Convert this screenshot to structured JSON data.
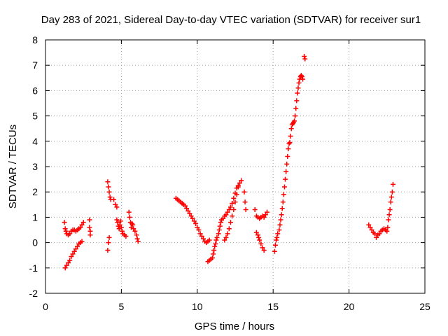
{
  "chart_data": {
    "type": "scatter",
    "title": "Day 283 of 2021, Sidereal Day-to-day VTEC variation (SDTVAR) for receiver sur1",
    "xlabel": "GPS time / hours",
    "ylabel": "SDTVAR / TECUs",
    "xlim": [
      0,
      25
    ],
    "ylim": [
      -2,
      8
    ],
    "xticks": [
      0,
      5,
      10,
      15,
      20,
      25
    ],
    "yticks": [
      -2,
      -1,
      0,
      1,
      2,
      3,
      4,
      5,
      6,
      7,
      8
    ],
    "xtick_labels": [
      "0",
      "5",
      "10",
      "15",
      "20",
      "25"
    ],
    "ytick_labels": [
      "-2",
      "-1",
      "0",
      "1",
      "2",
      "3",
      "4",
      "5",
      "6",
      "7",
      "8"
    ],
    "grid": true,
    "grid_style": "dotted",
    "marker": "+",
    "series": [
      {
        "name": "SDTVAR",
        "color": "#ff0000",
        "points": [
          [
            1.25,
            0.8
          ],
          [
            1.3,
            0.55
          ],
          [
            1.35,
            0.45
          ],
          [
            1.4,
            0.35
          ],
          [
            1.5,
            0.3
          ],
          [
            1.6,
            0.35
          ],
          [
            1.7,
            0.45
          ],
          [
            1.8,
            0.5
          ],
          [
            1.9,
            0.5
          ],
          [
            2.0,
            0.45
          ],
          [
            2.1,
            0.5
          ],
          [
            2.2,
            0.55
          ],
          [
            2.3,
            0.6
          ],
          [
            2.4,
            0.7
          ],
          [
            2.5,
            0.8
          ],
          [
            1.3,
            -1.0
          ],
          [
            1.4,
            -0.9
          ],
          [
            1.5,
            -0.8
          ],
          [
            1.6,
            -0.7
          ],
          [
            1.7,
            -0.55
          ],
          [
            1.8,
            -0.45
          ],
          [
            1.9,
            -0.35
          ],
          [
            2.0,
            -0.25
          ],
          [
            2.1,
            -0.15
          ],
          [
            2.2,
            -0.05
          ],
          [
            2.3,
            0.0
          ],
          [
            2.4,
            0.05
          ],
          [
            2.9,
            0.9
          ],
          [
            2.9,
            0.6
          ],
          [
            2.95,
            0.45
          ],
          [
            2.95,
            0.3
          ],
          [
            4.1,
            -0.3
          ],
          [
            4.15,
            0.0
          ],
          [
            4.2,
            0.2
          ],
          [
            4.1,
            2.4
          ],
          [
            4.15,
            2.2
          ],
          [
            4.2,
            2.0
          ],
          [
            4.25,
            1.8
          ],
          [
            4.3,
            1.7
          ],
          [
            4.5,
            1.7
          ],
          [
            4.6,
            1.5
          ],
          [
            4.7,
            1.4
          ],
          [
            4.7,
            0.9
          ],
          [
            4.75,
            0.8
          ],
          [
            4.8,
            0.65
          ],
          [
            4.85,
            0.55
          ],
          [
            4.9,
            0.7
          ],
          [
            4.95,
            0.85
          ],
          [
            5.0,
            0.6
          ],
          [
            5.05,
            0.45
          ],
          [
            5.1,
            0.35
          ],
          [
            5.2,
            0.3
          ],
          [
            5.3,
            0.25
          ],
          [
            5.5,
            1.2
          ],
          [
            5.55,
            1.0
          ],
          [
            5.6,
            0.8
          ],
          [
            5.65,
            0.6
          ],
          [
            5.7,
            0.75
          ],
          [
            5.75,
            0.7
          ],
          [
            5.8,
            0.55
          ],
          [
            5.9,
            0.45
          ],
          [
            6.0,
            0.3
          ],
          [
            6.05,
            0.15
          ],
          [
            6.1,
            0.05
          ],
          [
            8.6,
            1.75
          ],
          [
            8.7,
            1.7
          ],
          [
            8.8,
            1.65
          ],
          [
            8.9,
            1.6
          ],
          [
            9.0,
            1.55
          ],
          [
            9.1,
            1.5
          ],
          [
            9.2,
            1.45
          ],
          [
            9.3,
            1.35
          ],
          [
            9.4,
            1.25
          ],
          [
            9.5,
            1.15
          ],
          [
            9.6,
            1.05
          ],
          [
            9.7,
            0.95
          ],
          [
            9.8,
            0.85
          ],
          [
            9.9,
            0.75
          ],
          [
            10.0,
            0.6
          ],
          [
            10.1,
            0.5
          ],
          [
            10.2,
            0.35
          ],
          [
            10.3,
            0.25
          ],
          [
            10.4,
            0.15
          ],
          [
            10.5,
            0.05
          ],
          [
            10.6,
            0.0
          ],
          [
            10.7,
            0.05
          ],
          [
            10.8,
            0.1
          ],
          [
            10.7,
            -0.75
          ],
          [
            10.8,
            -0.7
          ],
          [
            10.9,
            -0.65
          ],
          [
            11.0,
            -0.6
          ],
          [
            11.05,
            -0.45
          ],
          [
            11.1,
            -0.3
          ],
          [
            11.15,
            -0.15
          ],
          [
            11.2,
            -0.05
          ],
          [
            11.25,
            0.1
          ],
          [
            11.3,
            0.2
          ],
          [
            11.4,
            0.35
          ],
          [
            11.45,
            0.5
          ],
          [
            11.5,
            0.65
          ],
          [
            11.55,
            0.8
          ],
          [
            11.6,
            0.9
          ],
          [
            11.7,
            0.95
          ],
          [
            11.8,
            1.05
          ],
          [
            11.9,
            1.1
          ],
          [
            12.0,
            1.2
          ],
          [
            12.1,
            1.3
          ],
          [
            12.2,
            1.4
          ],
          [
            12.3,
            1.55
          ],
          [
            12.4,
            1.75
          ],
          [
            12.5,
            1.95
          ],
          [
            12.6,
            2.15
          ],
          [
            12.7,
            2.25
          ],
          [
            12.8,
            2.35
          ],
          [
            12.9,
            2.45
          ],
          [
            11.8,
            0.1
          ],
          [
            11.9,
            0.2
          ],
          [
            12.0,
            0.35
          ],
          [
            12.1,
            0.55
          ],
          [
            12.2,
            0.8
          ],
          [
            12.3,
            1.05
          ],
          [
            12.4,
            1.3
          ],
          [
            12.5,
            1.6
          ],
          [
            12.6,
            1.9
          ],
          [
            12.7,
            2.2
          ],
          [
            13.1,
            2.0
          ],
          [
            13.15,
            1.6
          ],
          [
            13.2,
            1.3
          ],
          [
            13.8,
            1.3
          ],
          [
            13.9,
            1.05
          ],
          [
            14.0,
            1.0
          ],
          [
            14.1,
            0.95
          ],
          [
            14.2,
            1.0
          ],
          [
            14.3,
            1.05
          ],
          [
            14.4,
            1.0
          ],
          [
            14.5,
            1.1
          ],
          [
            14.6,
            1.2
          ],
          [
            13.9,
            0.4
          ],
          [
            14.0,
            0.3
          ],
          [
            14.05,
            0.2
          ],
          [
            14.1,
            0.1
          ],
          [
            14.2,
            -0.05
          ],
          [
            14.3,
            -0.2
          ],
          [
            14.4,
            -0.3
          ],
          [
            15.1,
            -0.35
          ],
          [
            15.15,
            -0.1
          ],
          [
            15.2,
            0.1
          ],
          [
            15.25,
            0.2
          ],
          [
            15.3,
            0.35
          ],
          [
            15.4,
            0.5
          ],
          [
            15.45,
            0.7
          ],
          [
            15.5,
            0.9
          ],
          [
            15.55,
            1.1
          ],
          [
            15.6,
            1.35
          ],
          [
            15.65,
            1.6
          ],
          [
            15.7,
            1.9
          ],
          [
            15.75,
            2.2
          ],
          [
            15.8,
            2.5
          ],
          [
            15.85,
            2.8
          ],
          [
            15.9,
            3.1
          ],
          [
            15.95,
            3.4
          ],
          [
            16.0,
            3.7
          ],
          [
            16.05,
            3.9
          ],
          [
            16.1,
            3.95
          ],
          [
            16.15,
            4.2
          ],
          [
            16.2,
            4.5
          ],
          [
            16.25,
            4.65
          ],
          [
            16.3,
            4.7
          ],
          [
            16.35,
            4.75
          ],
          [
            16.4,
            4.8
          ],
          [
            16.45,
            5.0
          ],
          [
            16.5,
            5.3
          ],
          [
            16.55,
            5.6
          ],
          [
            16.6,
            5.9
          ],
          [
            16.65,
            6.1
          ],
          [
            16.7,
            6.3
          ],
          [
            16.75,
            6.45
          ],
          [
            16.8,
            6.55
          ],
          [
            16.85,
            6.6
          ],
          [
            16.9,
            6.55
          ],
          [
            16.95,
            6.45
          ],
          [
            17.05,
            7.35
          ],
          [
            17.1,
            7.25
          ],
          [
            21.3,
            0.7
          ],
          [
            21.4,
            0.6
          ],
          [
            21.5,
            0.5
          ],
          [
            21.6,
            0.4
          ],
          [
            21.7,
            0.35
          ],
          [
            21.8,
            0.2
          ],
          [
            21.9,
            0.3
          ],
          [
            22.0,
            0.35
          ],
          [
            22.1,
            0.45
          ],
          [
            22.2,
            0.5
          ],
          [
            22.3,
            0.55
          ],
          [
            22.4,
            0.5
          ],
          [
            22.5,
            0.45
          ],
          [
            22.55,
            0.6
          ],
          [
            22.6,
            0.9
          ],
          [
            22.65,
            1.1
          ],
          [
            22.7,
            1.3
          ],
          [
            22.75,
            1.6
          ],
          [
            22.8,
            1.8
          ],
          [
            22.85,
            2.0
          ],
          [
            22.9,
            2.3
          ]
        ]
      }
    ]
  }
}
